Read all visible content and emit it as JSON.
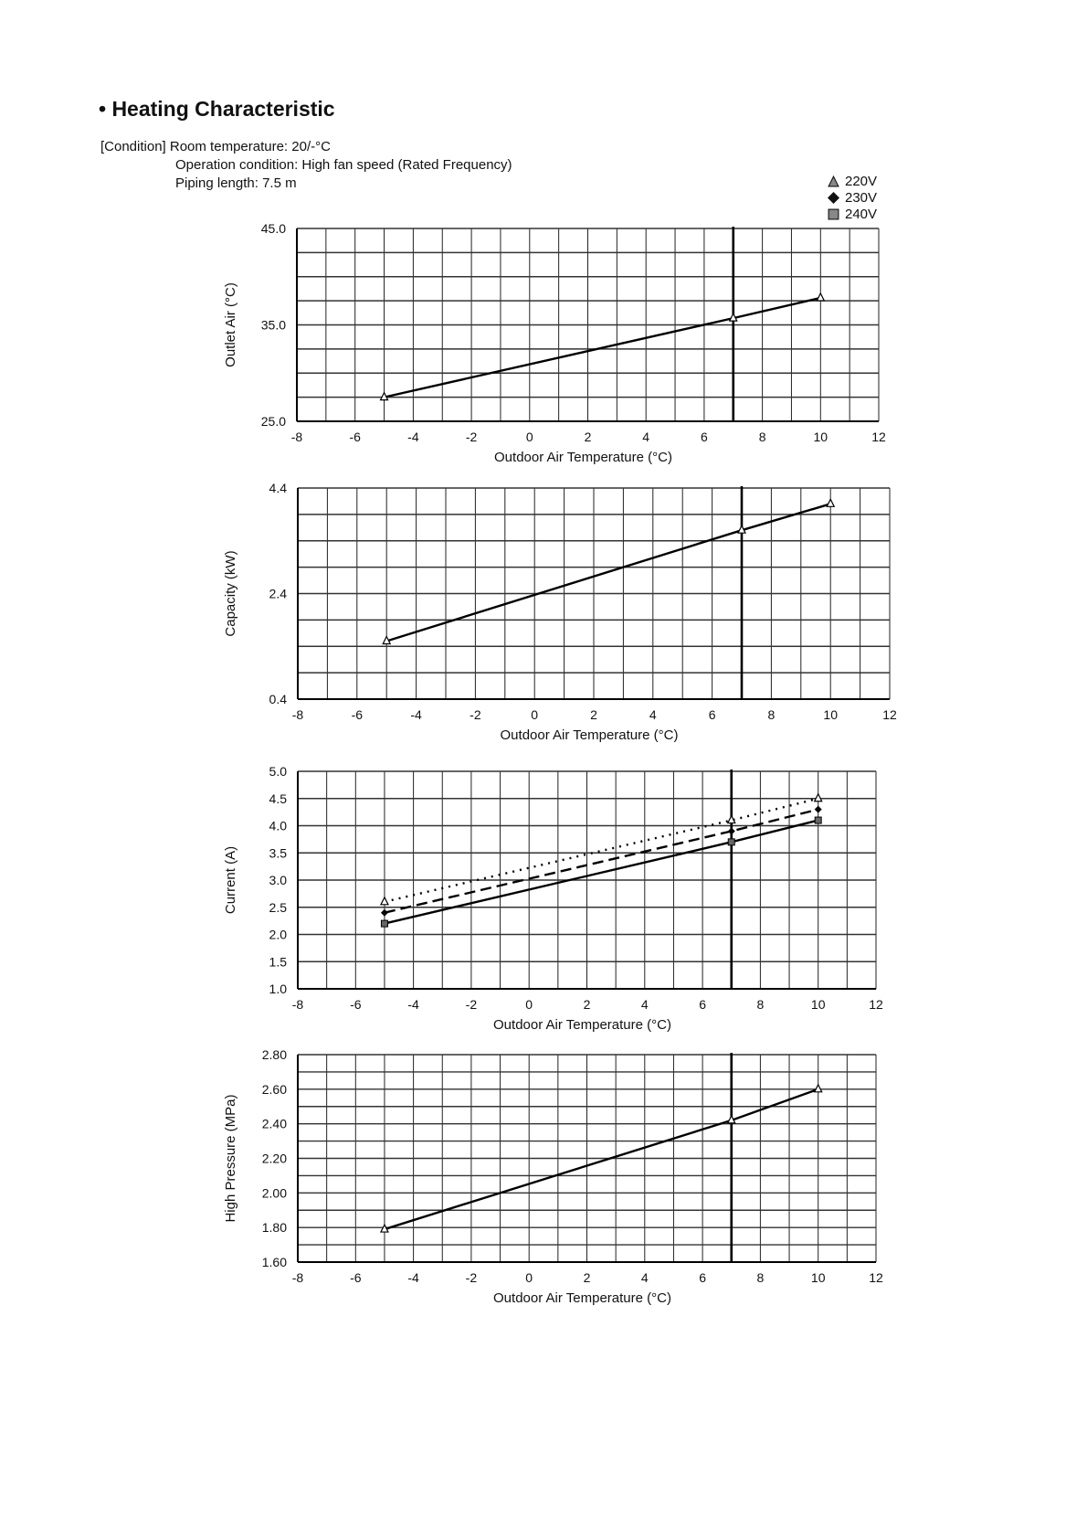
{
  "title": "• Heating Characteristic",
  "conditions": {
    "room_temperature": "[Condition] Room temperature: 20/-°C",
    "operation": "Operation condition: High fan speed (Rated Frequency)",
    "piping": "Piping length: 7.5 m"
  },
  "legend": [
    {
      "label": "220V",
      "marker": "triangle",
      "line": "dotted"
    },
    {
      "label": "230V",
      "marker": "diamond",
      "line": "dashed"
    },
    {
      "label": "240V",
      "marker": "square",
      "line": "solid"
    }
  ],
  "chart_data": [
    {
      "type": "line",
      "ylabel": "Outlet Air (°C)",
      "xlabel": "Outdoor  Air Temperature (°C)",
      "xlim": [
        -8,
        12
      ],
      "ylim": [
        25.0,
        45.0
      ],
      "xticks": [
        "-8",
        "-6",
        "-4",
        "-2",
        "0",
        "2",
        "4",
        "6",
        "8",
        "10",
        "12"
      ],
      "yticks": [
        "25.0",
        "35.0",
        "45.0"
      ],
      "ygrid_step": 2.5,
      "xgrid_step": 1,
      "reference_x": 7,
      "x": [
        -5,
        7,
        10
      ],
      "series": [
        {
          "name": "220V",
          "values": [
            27.5,
            35.7,
            37.8
          ]
        }
      ]
    },
    {
      "type": "line",
      "ylabel": "Capacity (kW)",
      "xlabel": "Outdoor  Air Temperature (°C)",
      "xlim": [
        -8,
        12
      ],
      "ylim": [
        0.4,
        4.4
      ],
      "xticks": [
        "-8",
        "-6",
        "-4",
        "-2",
        "0",
        "2",
        "4",
        "6",
        "8",
        "10",
        "12"
      ],
      "yticks": [
        "0.4",
        "2.4",
        "4.4"
      ],
      "ygrid_step": 0.5,
      "xgrid_step": 1,
      "reference_x": 7,
      "x": [
        -5,
        7,
        10
      ],
      "series": [
        {
          "name": "220V",
          "values": [
            1.5,
            3.6,
            4.1
          ]
        }
      ]
    },
    {
      "type": "line",
      "ylabel": "Current (A)",
      "xlabel": "Outdoor  Air Temperature (°C)",
      "xlim": [
        -8,
        12
      ],
      "ylim": [
        1.0,
        5.0
      ],
      "xticks": [
        "-8",
        "-6",
        "-4",
        "-2",
        "0",
        "2",
        "4",
        "6",
        "8",
        "10",
        "12"
      ],
      "yticks": [
        "1.0",
        "1.5",
        "2.0",
        "2.5",
        "3.0",
        "3.5",
        "4.0",
        "4.5",
        "5.0"
      ],
      "ygrid_step": 0.5,
      "xgrid_step": 1,
      "reference_x": 7,
      "x": [
        -5,
        7,
        10
      ],
      "series": [
        {
          "name": "220V",
          "values": [
            2.6,
            4.1,
            4.5
          ]
        },
        {
          "name": "230V",
          "values": [
            2.4,
            3.9,
            4.3
          ]
        },
        {
          "name": "240V",
          "values": [
            2.2,
            3.7,
            4.1
          ]
        }
      ]
    },
    {
      "type": "line",
      "ylabel": "High Pressure (MPa)",
      "xlabel": "Outdoor  Air Temperature (°C)",
      "xlim": [
        -8,
        12
      ],
      "ylim": [
        1.6,
        2.8
      ],
      "xticks": [
        "-8",
        "-6",
        "-4",
        "-2",
        "0",
        "2",
        "4",
        "6",
        "8",
        "10",
        "12"
      ],
      "yticks": [
        "1.60",
        "1.80",
        "2.00",
        "2.20",
        "2.40",
        "2.60",
        "2.80"
      ],
      "ygrid_step": 0.1,
      "xgrid_step": 1,
      "reference_x": 7,
      "x": [
        -5,
        7,
        10
      ],
      "series": [
        {
          "name": "220V",
          "values": [
            1.79,
            2.42,
            2.6
          ]
        }
      ]
    }
  ]
}
